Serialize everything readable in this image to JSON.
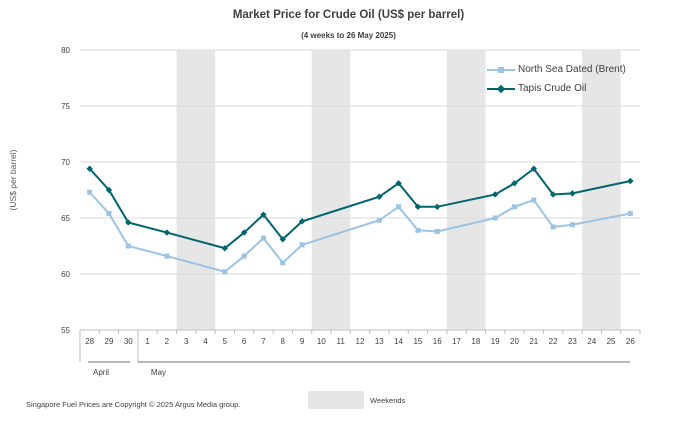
{
  "chart_data": {
    "type": "line",
    "title": "Market Price for Crude Oil  (US$  per barrel)",
    "subtitle": "(4 weeks to 26 May  2025)",
    "ylabel": "(US$ per barrel)",
    "ylim": [
      55,
      80
    ],
    "yticks": [
      55,
      60,
      65,
      70,
      75,
      80
    ],
    "categories": [
      "28",
      "29",
      "30",
      "1",
      "2",
      "3",
      "4",
      "5",
      "6",
      "7",
      "8",
      "9",
      "10",
      "11",
      "12",
      "13",
      "14",
      "15",
      "16",
      "17",
      "18",
      "19",
      "20",
      "21",
      "22",
      "23",
      "24",
      "25",
      "26"
    ],
    "month_labels": [
      {
        "label": "April",
        "start_index": 0
      },
      {
        "label": "May",
        "start_index": 3
      }
    ],
    "weekend_ranges": [
      [
        5,
        6
      ],
      [
        12,
        13
      ],
      [
        19,
        20
      ],
      [
        26,
        27
      ]
    ],
    "series": [
      {
        "name": "North Sea Dated (Brent)",
        "color": "#9cc3e4",
        "marker": "square",
        "values": [
          67.3,
          65.4,
          62.5,
          null,
          61.6,
          null,
          null,
          60.2,
          61.6,
          63.2,
          61.0,
          62.6,
          null,
          null,
          null,
          64.8,
          66.0,
          63.9,
          63.8,
          null,
          null,
          65.0,
          66.0,
          66.6,
          64.2,
          64.4,
          null,
          null,
          65.4
        ]
      },
      {
        "name": "Tapis Crude Oil",
        "color": "#00656f",
        "marker": "diamond",
        "values": [
          69.4,
          67.5,
          64.6,
          null,
          63.7,
          null,
          null,
          62.3,
          63.7,
          65.3,
          63.1,
          64.7,
          null,
          null,
          null,
          66.9,
          68.1,
          66.0,
          66.0,
          null,
          null,
          67.1,
          68.1,
          69.4,
          67.1,
          67.2,
          null,
          null,
          68.3
        ]
      }
    ],
    "legend_position": "top-right",
    "grid": true
  },
  "footer": "Singapore  Fuel Prices are Copyright © 2025  Argus Media group.",
  "weekends_label": "Weekends"
}
